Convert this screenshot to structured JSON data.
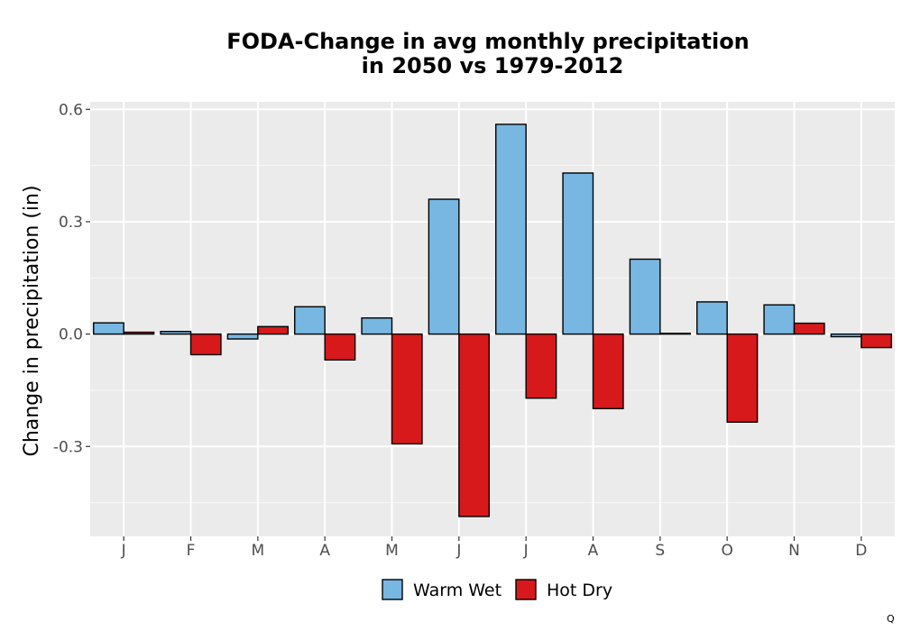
{
  "chart_data": {
    "type": "bar",
    "title_line1": "FODA-Change in avg monthly precipitation",
    "title_line2": "in 2050 vs 1979-2012",
    "xlabel": "",
    "ylabel": "Change in precipitation (in)",
    "categories": [
      "J",
      "F",
      "M",
      "A",
      "M",
      "J",
      "J",
      "A",
      "S",
      "O",
      "N",
      "D"
    ],
    "series": [
      {
        "name": "Warm Wet",
        "color": "#77b7e2",
        "values": [
          0.03,
          0.007,
          -0.013,
          0.073,
          0.043,
          0.36,
          0.56,
          0.43,
          0.2,
          0.086,
          0.078,
          -0.007
        ]
      },
      {
        "name": "Hot Dry",
        "color": "#d7191c",
        "values": [
          0.005,
          -0.055,
          0.02,
          -0.069,
          -0.293,
          -0.487,
          -0.171,
          -0.199,
          0.002,
          -0.235,
          0.029,
          -0.036
        ]
      }
    ],
    "ylim": [
      -0.54,
      0.62
    ],
    "yticks": [
      -0.3,
      0.0,
      0.3,
      0.6
    ],
    "ytick_labels": [
      "-0.3",
      "0.0",
      "0.3",
      "0.6"
    ],
    "grid": true,
    "legend_position": "bottom"
  },
  "footer_mark": "Q"
}
